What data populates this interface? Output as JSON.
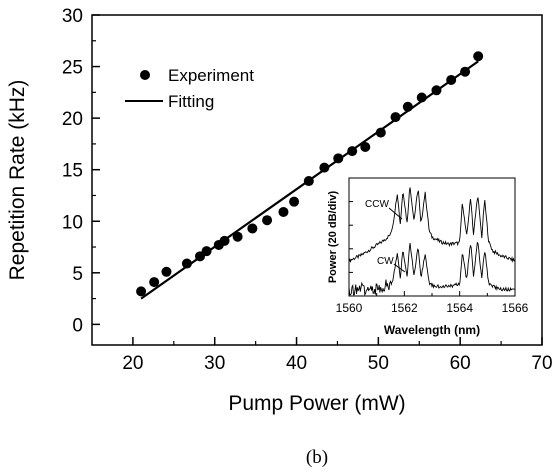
{
  "figure_label": "(b)",
  "chart_data": [
    {
      "type": "scatter",
      "xlabel": "Pump Power (mW)",
      "ylabel": "Repetition Rate (kHz)",
      "xlim": [
        15,
        70
      ],
      "ylim": [
        -2,
        30
      ],
      "xticks": [
        20,
        30,
        40,
        50,
        60,
        70
      ],
      "yticks": [
        0,
        5,
        10,
        15,
        20,
        25,
        30
      ],
      "grid": false,
      "legend_position": "top-left",
      "series": [
        {
          "name": "Experiment",
          "style": "markers",
          "color": "#000000",
          "x": [
            21.0,
            22.6,
            24.1,
            26.6,
            28.2,
            29.0,
            30.5,
            31.2,
            32.8,
            34.6,
            36.4,
            38.4,
            39.7,
            41.5,
            43.4,
            45.1,
            46.8,
            48.4,
            50.3,
            52.1,
            53.6,
            55.3,
            57.1,
            58.9,
            60.6,
            62.2
          ],
          "y": [
            3.2,
            4.1,
            5.1,
            5.9,
            6.6,
            7.1,
            7.7,
            8.1,
            8.5,
            9.3,
            10.1,
            10.9,
            11.9,
            13.9,
            15.2,
            16.1,
            16.8,
            17.2,
            18.6,
            20.1,
            21.1,
            22.0,
            22.7,
            23.7,
            24.5,
            26.0
          ]
        },
        {
          "name": "Fitting",
          "style": "line",
          "color": "#000000",
          "x": [
            21.0,
            62.2
          ],
          "y": [
            2.5,
            25.5
          ]
        }
      ]
    },
    {
      "type": "line",
      "position": "inset-bottom-right",
      "xlabel": "Wavelength (nm)",
      "ylabel": "Power (20 dB/div)",
      "xlim": [
        1560,
        1566
      ],
      "xticks": [
        1560,
        1562,
        1564,
        1566
      ],
      "annotations": [
        "CCW",
        "CW"
      ],
      "series": [
        {
          "name": "CCW",
          "color": "#000000",
          "x": [
            1560.0,
            1560.4,
            1560.8,
            1561.2,
            1561.5,
            1561.6,
            1561.75,
            1561.85,
            1561.95,
            1562.1,
            1562.2,
            1562.35,
            1562.5,
            1562.6,
            1562.75,
            1562.9,
            1563.0,
            1563.3,
            1563.6,
            1564.0,
            1564.1,
            1564.25,
            1564.4,
            1564.5,
            1564.65,
            1564.8,
            1564.9,
            1565.05,
            1565.2,
            1565.5,
            1566.0
          ],
          "y": [
            0.3,
            0.34,
            0.4,
            0.46,
            0.52,
            0.62,
            0.88,
            0.6,
            0.9,
            0.62,
            0.94,
            0.64,
            0.92,
            0.6,
            0.88,
            0.55,
            0.5,
            0.46,
            0.44,
            0.45,
            0.8,
            0.5,
            0.84,
            0.52,
            0.86,
            0.5,
            0.82,
            0.46,
            0.38,
            0.34,
            0.3
          ]
        },
        {
          "name": "CW",
          "color": "#000000",
          "x": [
            1560.0,
            1560.4,
            1560.8,
            1561.2,
            1561.5,
            1561.6,
            1561.75,
            1561.85,
            1561.95,
            1562.1,
            1562.2,
            1562.35,
            1562.5,
            1562.6,
            1562.75,
            1562.9,
            1563.0,
            1563.3,
            1563.6,
            1564.0,
            1564.1,
            1564.25,
            1564.4,
            1564.5,
            1564.65,
            1564.8,
            1564.9,
            1565.05,
            1565.2,
            1565.5,
            1566.0
          ],
          "y": [
            0.04,
            0.06,
            0.05,
            0.08,
            0.1,
            0.16,
            0.36,
            0.14,
            0.4,
            0.16,
            0.46,
            0.18,
            0.42,
            0.14,
            0.36,
            0.1,
            0.09,
            0.08,
            0.08,
            0.1,
            0.38,
            0.14,
            0.46,
            0.16,
            0.48,
            0.14,
            0.4,
            0.1,
            0.08,
            0.06,
            0.05
          ]
        }
      ]
    }
  ]
}
